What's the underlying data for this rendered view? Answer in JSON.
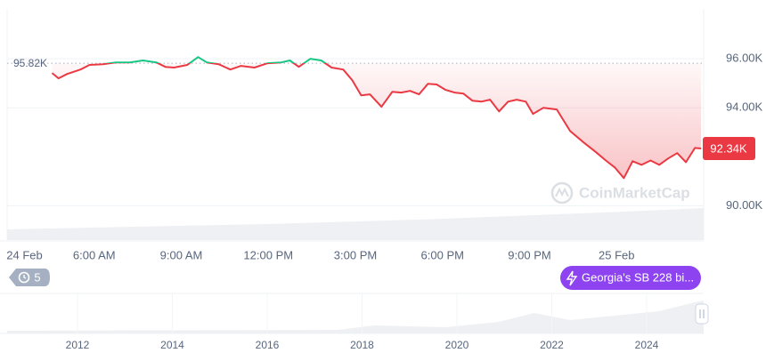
{
  "chart_data": {
    "type": "line",
    "x": [
      4.55,
      4.77,
      5.07,
      5.53,
      5.84,
      6.3,
      6.76,
      7.22,
      7.68,
      8.14,
      8.45,
      8.75,
      9.21,
      9.58,
      9.88,
      10.29,
      10.69,
      11.06,
      11.52,
      11.98,
      12.44,
      12.74,
      13.05,
      13.45,
      13.82,
      14.18,
      14.58,
      14.89,
      15.2,
      15.5,
      15.9,
      16.27,
      16.58,
      16.88,
      17.19,
      17.5,
      17.8,
      18.11,
      18.42,
      18.72,
      19.03,
      19.34,
      19.64,
      19.95,
      20.26,
      20.56,
      20.87,
      21.12,
      21.48,
      21.94,
      22.4,
      22.87,
      23.26,
      23.63,
      23.94,
      24.25,
      24.55,
      24.86,
      25.17,
      25.47,
      25.78,
      26.09,
      26.39,
      26.7,
      26.91
    ],
    "values": [
      95420,
      95200,
      95380,
      95560,
      95750,
      95780,
      95850,
      95850,
      95930,
      95850,
      95670,
      95640,
      95750,
      96070,
      95850,
      95780,
      95560,
      95710,
      95640,
      95820,
      95850,
      95930,
      95670,
      96000,
      95930,
      95640,
      95560,
      95130,
      94510,
      94550,
      94040,
      94650,
      94620,
      94690,
      94550,
      94980,
      94950,
      94730,
      94620,
      94580,
      94290,
      94250,
      94330,
      93850,
      94250,
      94330,
      94250,
      93750,
      94000,
      93930,
      93050,
      92580,
      92220,
      91850,
      91560,
      91130,
      91820,
      91670,
      91850,
      91670,
      91930,
      92150,
      91780,
      92360,
      92340
    ],
    "up_color": "#16c784",
    "down_color": "#ea3943",
    "reference": {
      "value": 95820,
      "label": "95.82K"
    },
    "current": {
      "value": 92340,
      "label": "92.34K"
    },
    "xlim": [
      3,
      27
    ],
    "xticks": [
      {
        "value": 3.6,
        "label": "24 Feb"
      },
      {
        "value": 6,
        "label": "6:00 AM"
      },
      {
        "value": 9,
        "label": "9:00 AM"
      },
      {
        "value": 12,
        "label": "12:00 PM"
      },
      {
        "value": 15,
        "label": "3:00 PM"
      },
      {
        "value": 18,
        "label": "6:00 PM"
      },
      {
        "value": 21,
        "label": "9:00 PM"
      },
      {
        "value": 24,
        "label": "25 Feb"
      }
    ],
    "ylim": [
      88600,
      98000
    ],
    "yticks": [
      {
        "value": 90000,
        "label": "90.00K"
      },
      {
        "value": 94000,
        "label": "94.00K"
      },
      {
        "value": 96000,
        "label": "96.00K"
      }
    ],
    "grid": true
  },
  "ui": {
    "events_badge": "5",
    "news_pill": "Georgia's SB 228 bi...",
    "watermark": "CoinMarketCap",
    "navigator_years": [
      2012,
      2014,
      2016,
      2018,
      2020,
      2022,
      2024
    ]
  }
}
